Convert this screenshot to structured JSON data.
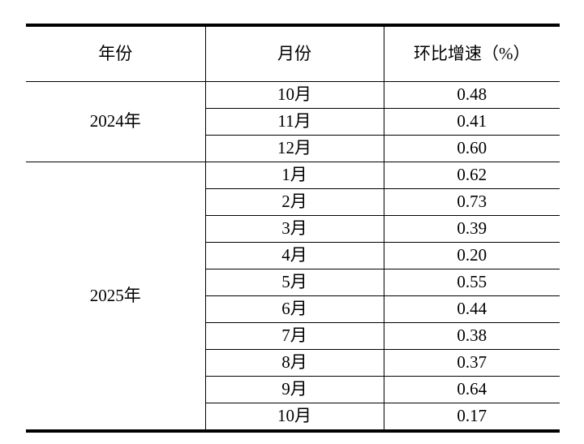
{
  "colors": {
    "background": "#ffffff",
    "text": "#000000",
    "border": "#000000"
  },
  "table": {
    "headers": [
      "年份",
      "月份",
      "环比增速（%）"
    ],
    "groups": [
      {
        "year": "2024年",
        "rows": [
          {
            "month": "10月",
            "value": "0.48"
          },
          {
            "month": "11月",
            "value": "0.41"
          },
          {
            "month": "12月",
            "value": "0.60"
          }
        ]
      },
      {
        "year": "2025年",
        "rows": [
          {
            "month": "1月",
            "value": "0.62"
          },
          {
            "month": "2月",
            "value": "0.73"
          },
          {
            "month": "3月",
            "value": "0.39"
          },
          {
            "month": "4月",
            "value": "0.20"
          },
          {
            "month": "5月",
            "value": "0.55"
          },
          {
            "month": "6月",
            "value": "0.44"
          },
          {
            "month": "7月",
            "value": "0.38"
          },
          {
            "month": "8月",
            "value": "0.37"
          },
          {
            "month": "9月",
            "value": "0.64"
          },
          {
            "month": "10月",
            "value": "0.17"
          }
        ]
      }
    ]
  },
  "chart_data": {
    "type": "table",
    "title": "",
    "columns": [
      "年份",
      "月份",
      "环比增速（%）"
    ],
    "rows": [
      [
        "2024年",
        "10月",
        0.48
      ],
      [
        "2024年",
        "11月",
        0.41
      ],
      [
        "2024年",
        "12月",
        0.6
      ],
      [
        "2025年",
        "1月",
        0.62
      ],
      [
        "2025年",
        "2月",
        0.73
      ],
      [
        "2025年",
        "3月",
        0.39
      ],
      [
        "2025年",
        "4月",
        0.2
      ],
      [
        "2025年",
        "5月",
        0.55
      ],
      [
        "2025年",
        "6月",
        0.44
      ],
      [
        "2025年",
        "7月",
        0.38
      ],
      [
        "2025年",
        "8月",
        0.37
      ],
      [
        "2025年",
        "9月",
        0.64
      ],
      [
        "2025年",
        "10月",
        0.17
      ]
    ]
  }
}
